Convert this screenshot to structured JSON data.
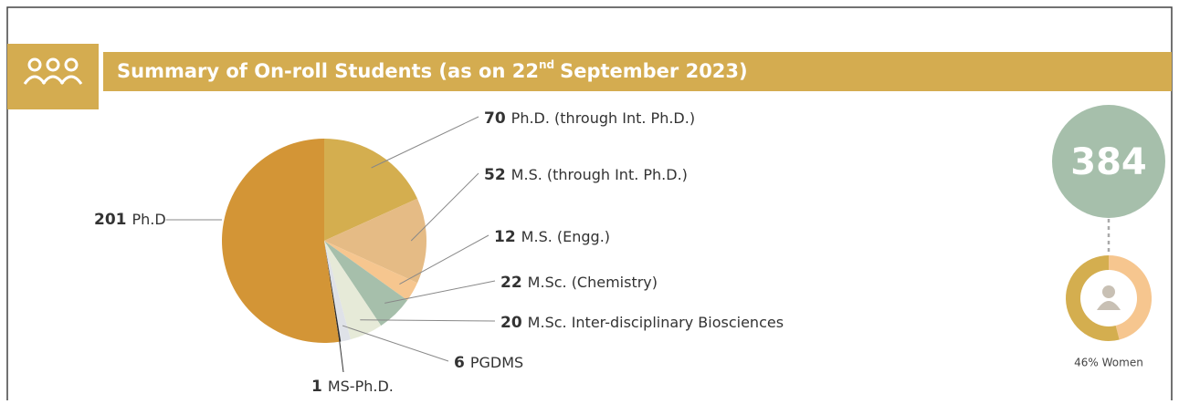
{
  "chart_data": {
    "type": "pie",
    "title": {
      "text": "Summary of On-roll Students (as on 22",
      "sup": "nd",
      "rest": "September 2023)"
    },
    "categories": [
      "Ph.D. (through Int. Ph.D.)",
      "M.S. (through Int. Ph.D.)",
      "M.S. (Engg.)",
      "M.Sc. (Chemistry)",
      "M.Sc. Inter-disciplinary Biosciences",
      "PGDMS",
      "MS-Ph.D.",
      "Ph.D"
    ],
    "values": [
      70,
      52,
      12,
      22,
      20,
      6,
      1,
      201
    ],
    "colors": [
      "#d4ae4f",
      "#e5bb85",
      "#f6c68f",
      "#a6bfab",
      "#e6ead8",
      "#dfe2e8",
      "#2d2d2d",
      "#d39536"
    ],
    "total": 384,
    "women": {
      "value": 46,
      "label": "46% Women"
    }
  }
}
